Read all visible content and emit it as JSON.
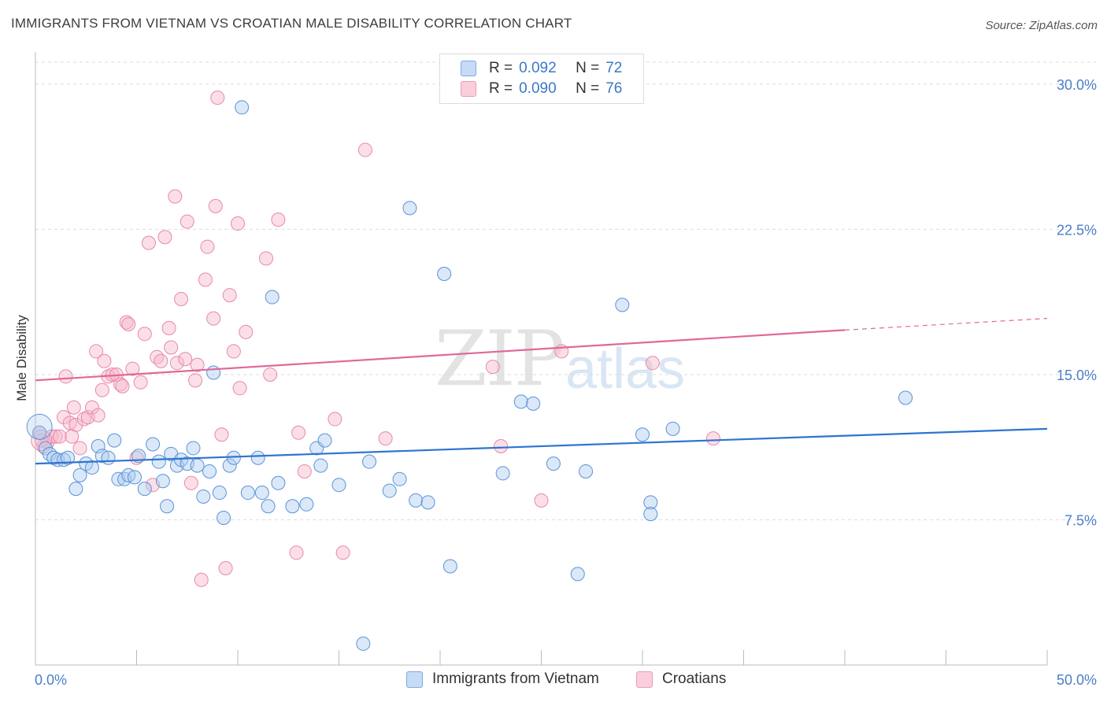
{
  "title": "IMMIGRANTS FROM VIETNAM VS CROATIAN MALE DISABILITY CORRELATION CHART",
  "source": "Source: ZipAtlas.com",
  "watermark": {
    "zip": "ZIP",
    "atlas": "atlas"
  },
  "legend": {
    "rows": [
      {
        "r_label": "R =",
        "r_value": "0.092",
        "n_label": "N =",
        "n_value": "72",
        "color": "#aecbf0"
      },
      {
        "r_label": "R =",
        "r_value": "0.090",
        "n_label": "N =",
        "n_value": "76",
        "color": "#f6b9cc"
      }
    ]
  },
  "bottom_legend": [
    {
      "label": "Immigrants from Vietnam",
      "color": "#aecbf0"
    },
    {
      "label": "Croatians",
      "color": "#f6b9cc"
    }
  ],
  "chart_data": {
    "type": "scatter",
    "title": "IMMIGRANTS FROM VIETNAM VS CROATIAN MALE DISABILITY CORRELATION CHART",
    "xlabel": "",
    "ylabel": "Male Disability",
    "xlim": [
      0,
      50
    ],
    "ylim": [
      0,
      31.5
    ],
    "x_tick_labels": [
      {
        "value": 0,
        "label": "0.0%"
      },
      {
        "value": 50,
        "label": "50.0%"
      }
    ],
    "y_tick_labels": [
      {
        "value": 7.5,
        "label": "7.5%"
      },
      {
        "value": 15,
        "label": "15.0%"
      },
      {
        "value": 22.5,
        "label": "22.5%"
      },
      {
        "value": 30,
        "label": "30.0%"
      }
    ],
    "grid": true,
    "legend_position": "top-center",
    "series": [
      {
        "name": "Immigrants from Vietnam",
        "color": "#5b93d8",
        "fill": "#aecbf0",
        "trend": {
          "x": [
            0,
            50
          ],
          "y": [
            10.4,
            12.2
          ],
          "color": "#2f74cf"
        },
        "points": [
          [
            0.2,
            12.0
          ],
          [
            0.5,
            11.2
          ],
          [
            0.7,
            10.9
          ],
          [
            0.9,
            10.7
          ],
          [
            1.1,
            10.6
          ],
          [
            1.4,
            10.6
          ],
          [
            1.6,
            10.7
          ],
          [
            2.0,
            9.1
          ],
          [
            2.2,
            9.8
          ],
          [
            2.5,
            10.4
          ],
          [
            2.8,
            10.2
          ],
          [
            3.1,
            11.3
          ],
          [
            3.3,
            10.8
          ],
          [
            3.6,
            10.7
          ],
          [
            3.9,
            11.6
          ],
          [
            4.1,
            9.6
          ],
          [
            4.4,
            9.6
          ],
          [
            4.6,
            9.8
          ],
          [
            4.9,
            9.7
          ],
          [
            5.1,
            10.8
          ],
          [
            5.4,
            9.1
          ],
          [
            5.8,
            11.4
          ],
          [
            6.1,
            10.5
          ],
          [
            6.3,
            9.5
          ],
          [
            6.5,
            8.2
          ],
          [
            6.7,
            10.9
          ],
          [
            7.0,
            10.3
          ],
          [
            7.2,
            10.6
          ],
          [
            7.5,
            10.4
          ],
          [
            7.8,
            11.2
          ],
          [
            8.0,
            10.3
          ],
          [
            8.3,
            8.7
          ],
          [
            8.6,
            10.0
          ],
          [
            8.8,
            15.1
          ],
          [
            9.1,
            8.9
          ],
          [
            9.3,
            7.6
          ],
          [
            9.6,
            10.3
          ],
          [
            9.8,
            10.7
          ],
          [
            10.2,
            28.8
          ],
          [
            10.5,
            8.9
          ],
          [
            11.0,
            10.7
          ],
          [
            11.2,
            8.9
          ],
          [
            11.5,
            8.2
          ],
          [
            11.7,
            19.0
          ],
          [
            12.0,
            9.4
          ],
          [
            12.7,
            8.2
          ],
          [
            13.4,
            8.3
          ],
          [
            13.9,
            11.2
          ],
          [
            14.1,
            10.3
          ],
          [
            14.3,
            11.6
          ],
          [
            15.0,
            9.3
          ],
          [
            16.2,
            1.1
          ],
          [
            16.5,
            10.5
          ],
          [
            17.5,
            9.0
          ],
          [
            18.0,
            9.6
          ],
          [
            18.5,
            23.6
          ],
          [
            18.8,
            8.5
          ],
          [
            19.4,
            8.4
          ],
          [
            20.2,
            20.2
          ],
          [
            20.5,
            5.1
          ],
          [
            23.1,
            9.9
          ],
          [
            24.0,
            13.6
          ],
          [
            24.6,
            13.5
          ],
          [
            25.6,
            10.4
          ],
          [
            26.8,
            4.7
          ],
          [
            27.2,
            10.0
          ],
          [
            29.0,
            18.6
          ],
          [
            30.4,
            8.4
          ],
          [
            30.4,
            7.8
          ],
          [
            30.0,
            11.9
          ],
          [
            31.5,
            12.2
          ],
          [
            43.0,
            13.8
          ]
        ]
      },
      {
        "name": "Croatians",
        "color": "#e889a8",
        "fill": "#f6b9cc",
        "trend": {
          "x": [
            0,
            40
          ],
          "y": [
            14.7,
            17.3
          ],
          "dash_to": [
            50,
            17.9
          ],
          "color": "#e0689a"
        },
        "points": [
          [
            0.2,
            12.0
          ],
          [
            0.4,
            11.3
          ],
          [
            0.6,
            11.5
          ],
          [
            0.8,
            11.8
          ],
          [
            1.0,
            11.8
          ],
          [
            1.2,
            11.8
          ],
          [
            1.4,
            12.8
          ],
          [
            1.5,
            14.9
          ],
          [
            1.7,
            12.5
          ],
          [
            1.9,
            13.3
          ],
          [
            2.0,
            12.4
          ],
          [
            2.2,
            11.2
          ],
          [
            2.4,
            12.7
          ],
          [
            2.6,
            12.8
          ],
          [
            2.8,
            13.3
          ],
          [
            3.0,
            16.2
          ],
          [
            3.1,
            12.9
          ],
          [
            3.3,
            14.2
          ],
          [
            3.4,
            15.7
          ],
          [
            3.6,
            14.9
          ],
          [
            3.8,
            15.0
          ],
          [
            4.0,
            15.0
          ],
          [
            4.2,
            14.5
          ],
          [
            4.3,
            14.4
          ],
          [
            4.5,
            17.7
          ],
          [
            4.6,
            17.6
          ],
          [
            4.8,
            15.3
          ],
          [
            5.0,
            10.7
          ],
          [
            5.2,
            14.6
          ],
          [
            5.4,
            17.1
          ],
          [
            5.6,
            21.8
          ],
          [
            5.8,
            9.3
          ],
          [
            6.0,
            15.9
          ],
          [
            6.2,
            15.7
          ],
          [
            6.4,
            22.1
          ],
          [
            6.6,
            17.4
          ],
          [
            6.7,
            16.4
          ],
          [
            6.9,
            24.2
          ],
          [
            7.0,
            15.6
          ],
          [
            7.2,
            18.9
          ],
          [
            7.4,
            15.8
          ],
          [
            7.5,
            22.9
          ],
          [
            7.7,
            9.4
          ],
          [
            7.9,
            14.7
          ],
          [
            8.0,
            15.5
          ],
          [
            8.2,
            4.4
          ],
          [
            8.4,
            19.9
          ],
          [
            8.5,
            21.6
          ],
          [
            8.8,
            17.9
          ],
          [
            8.9,
            23.7
          ],
          [
            9.0,
            29.3
          ],
          [
            9.2,
            11.9
          ],
          [
            9.4,
            5.0
          ],
          [
            9.6,
            19.1
          ],
          [
            9.8,
            16.2
          ],
          [
            10.0,
            22.8
          ],
          [
            10.1,
            14.3
          ],
          [
            10.4,
            17.2
          ],
          [
            11.4,
            21.0
          ],
          [
            11.6,
            15.0
          ],
          [
            12.0,
            23.0
          ],
          [
            12.9,
            5.8
          ],
          [
            13.0,
            12.0
          ],
          [
            13.3,
            10.0
          ],
          [
            14.8,
            12.7
          ],
          [
            15.2,
            5.8
          ],
          [
            16.3,
            26.6
          ],
          [
            17.3,
            11.7
          ],
          [
            22.6,
            15.4
          ],
          [
            23.0,
            11.3
          ],
          [
            25.0,
            8.5
          ],
          [
            26.0,
            16.2
          ],
          [
            30.5,
            15.6
          ],
          [
            33.5,
            11.7
          ],
          [
            0.3,
            11.6
          ],
          [
            1.8,
            11.8
          ]
        ]
      }
    ]
  }
}
